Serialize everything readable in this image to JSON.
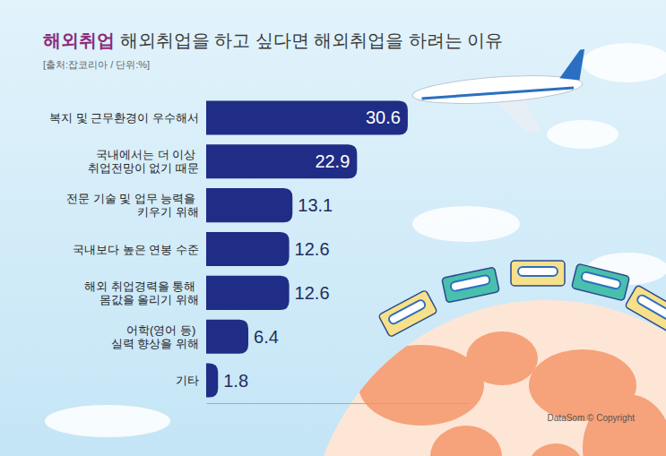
{
  "chart_data": {
    "type": "bar",
    "orientation": "horizontal",
    "title": "해외취업 해외취업을 하고 싶다면 해외취업을 하려는 이유",
    "subtitle": "[출처:잡코리아 / 단위:%]",
    "categories": [
      "복지 및 근무환경이 우수해서",
      "국내에서는 더 이상\n취업전망이 없기 때문",
      "전문 기술 및 업무 능력을\n키우기 위해",
      "국내보다 높은 연봉 수준",
      "해외 취업경력을 통해\n몸값을 올리기 위해",
      "어학(영어 등)\n실력 향상을 위해",
      "기타"
    ],
    "values": [
      30.6,
      22.9,
      13.1,
      12.6,
      12.6,
      6.4,
      1.8
    ],
    "color": "#1f2d86",
    "xlim": [
      0,
      40
    ],
    "xticks": [],
    "tick_labels": "y",
    "grid": false,
    "data_labels": true,
    "annotations": [
      "DataSom © Copyright"
    ]
  }
}
